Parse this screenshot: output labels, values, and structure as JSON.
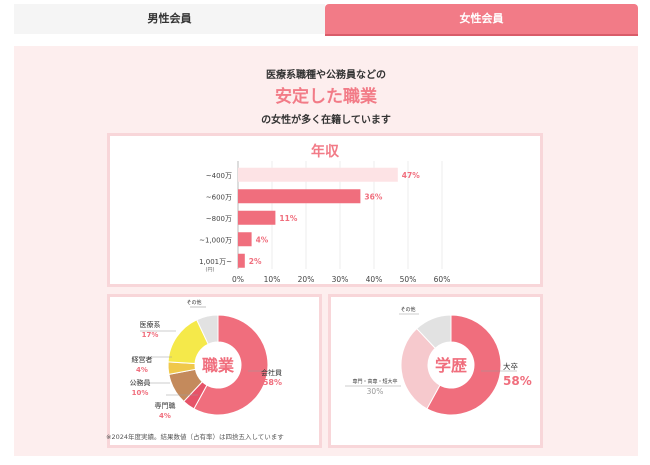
{
  "tabs": {
    "male": "男性会員",
    "female": "女性会員"
  },
  "intro": {
    "line1": "医療系職種や公務員などの",
    "headline": "安定した職業",
    "line3": "の女性が多く在籍しています"
  },
  "footnote": "※2024年度実績。結果数値（占有率）は四捨五入しています",
  "colors": {
    "accent": "#f27b87",
    "panel_bg": "#fdeeee",
    "card_border": "#f8d6d9"
  },
  "chart_data": [
    {
      "type": "bar",
      "title": "年収",
      "categories": [
        "~400万",
        "~600万",
        "~800万",
        "~1,000万",
        "1,001万~"
      ],
      "values": [
        47,
        36,
        11,
        4,
        2
      ],
      "value_labels": [
        "47%",
        "36%",
        "11%",
        "4%",
        "2%"
      ],
      "x_ticks": [
        "0%",
        "10%",
        "20%",
        "30%",
        "40%",
        "50%",
        "60%"
      ],
      "xlim": [
        0,
        60
      ],
      "unit_note": "(円)",
      "grid": true
    },
    {
      "type": "pie",
      "title": "職業",
      "slices": [
        {
          "label": "会社員",
          "value": 58,
          "pct": "58%",
          "color": "#f06e7d"
        },
        {
          "label": "専門職",
          "value": 4,
          "pct": "4%",
          "color": "#e65368"
        },
        {
          "label": "公務員",
          "value": 10,
          "pct": "10%",
          "color": "#c48a5c"
        },
        {
          "label": "経営者",
          "value": 4,
          "pct": "4%",
          "color": "#f0c84a"
        },
        {
          "label": "医療系",
          "value": 17,
          "pct": "17%",
          "color": "#f5e94a"
        },
        {
          "label": "その他",
          "value": 7,
          "pct": "",
          "color": "#e2e2e2"
        }
      ]
    },
    {
      "type": "pie",
      "title": "学歴",
      "slices": [
        {
          "label": "大卒",
          "value": 58,
          "pct": "58%",
          "color": "#f06e7d"
        },
        {
          "label": "専門・高専・短大卒",
          "value": 30,
          "pct": "30%",
          "color": "#f6c9cd"
        },
        {
          "label": "その他",
          "value": 12,
          "pct": "",
          "color": "#e2e2e2"
        }
      ]
    }
  ]
}
